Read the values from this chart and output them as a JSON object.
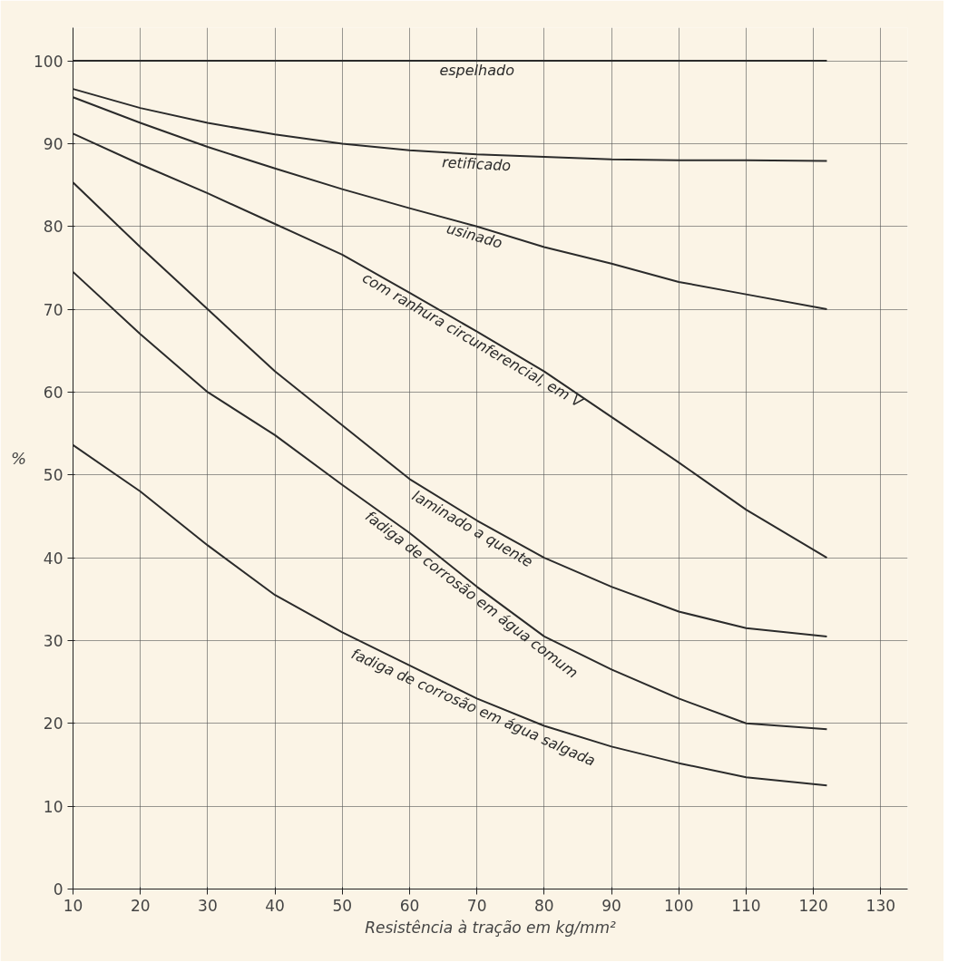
{
  "chart_data": {
    "type": "line",
    "xlabel": "Resistência à tração em kg/mm²",
    "ylabel": "%",
    "x": [
      10,
      20,
      30,
      40,
      50,
      60,
      70,
      80,
      90,
      100,
      110,
      122
    ],
    "series": [
      {
        "name": "espelhado",
        "color": "#2b2b2b",
        "values": [
          100,
          100,
          100,
          100,
          100,
          100,
          100,
          100,
          100,
          100,
          100,
          100
        ]
      },
      {
        "name": "retificado",
        "color": "#2b2b2b",
        "values": [
          96.6,
          94.3,
          92.5,
          91.1,
          90,
          89.2,
          88.7,
          88.4,
          88.1,
          88,
          88,
          87.9
        ]
      },
      {
        "name": "usinado",
        "color": "#2b2b2b",
        "values": [
          95.6,
          92.5,
          89.6,
          87,
          84.5,
          82.2,
          80,
          77.5,
          75.5,
          73.3,
          71.8,
          70
        ]
      },
      {
        "name": "com ranhura circunferencial, em V",
        "color": "#2b2b2b",
        "values": [
          91.2,
          87.5,
          84,
          80.3,
          76.6,
          72,
          67.3,
          62.5,
          57,
          51.5,
          45.8,
          40
        ]
      },
      {
        "name": "laminado a quente",
        "color": "#2b2b2b",
        "values": [
          85.3,
          77.5,
          70,
          62.5,
          56,
          49.5,
          44.5,
          40,
          36.5,
          33.5,
          31.5,
          30.5
        ]
      },
      {
        "name": "fadiga de corrosão em água comum",
        "color": "#2b2b2b",
        "values": [
          74.5,
          67,
          60,
          54.8,
          48.8,
          43,
          36.5,
          30.5,
          26.5,
          23,
          20,
          19.3
        ]
      },
      {
        "name": "fadiga de corrosão em água salgada",
        "color": "#2b2b2b",
        "values": [
          53.6,
          48,
          41.5,
          35.5,
          31,
          27,
          23,
          19.7,
          17.2,
          15.2,
          13.5,
          12.5
        ]
      }
    ],
    "xlim": [
      10,
      134
    ],
    "ylim": [
      0,
      104
    ],
    "xticks": [
      10,
      20,
      30,
      40,
      50,
      60,
      70,
      80,
      90,
      100,
      110,
      120,
      130
    ],
    "yticks": [
      0,
      10,
      20,
      30,
      40,
      50,
      60,
      70,
      80,
      90,
      100
    ],
    "grid": true
  }
}
